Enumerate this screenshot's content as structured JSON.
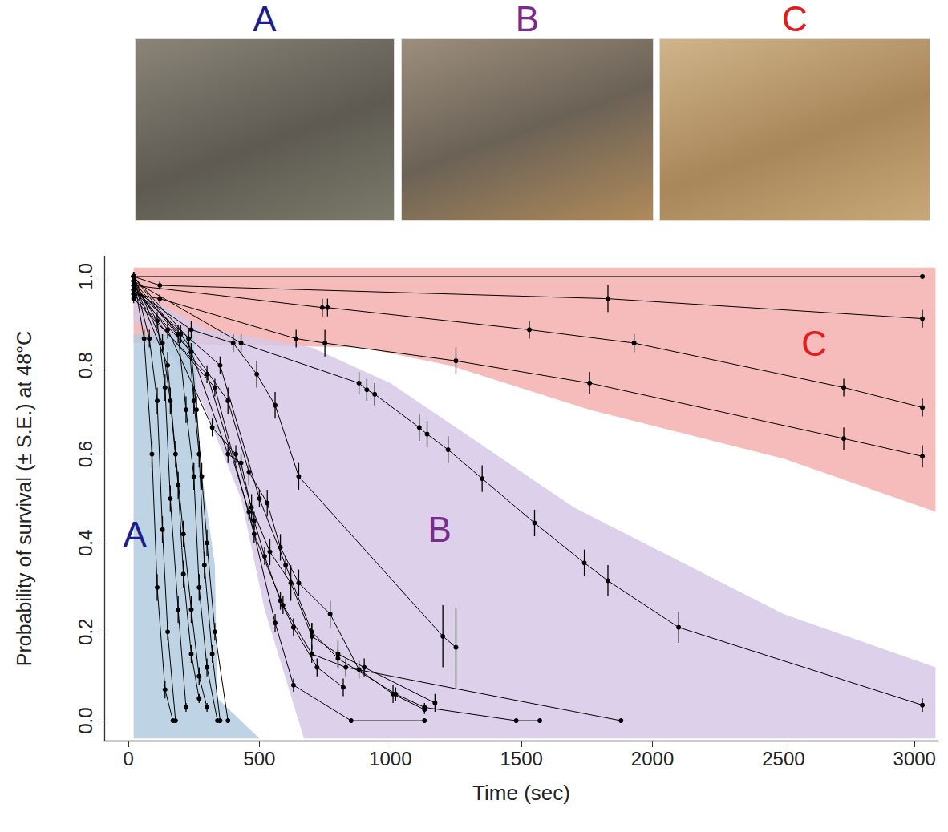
{
  "chart_data": {
    "type": "line",
    "xlabel": "Time (sec)",
    "ylabel": "Probability of survival (± S.E.) at 48°C",
    "xlim": [
      -92,
      3091
    ],
    "ylim": [
      -0.045,
      1.045
    ],
    "xticks": [
      0,
      500,
      1000,
      1500,
      2000,
      2500,
      3000
    ],
    "yticks": [
      {
        "value": 0,
        "label": "0.0"
      },
      0.2,
      0.4,
      0.6,
      0.8,
      {
        "value": 1,
        "label": "1.0"
      }
    ],
    "grid": false,
    "color": "#000000",
    "marker": "circle",
    "line_style": "solid",
    "photo_labels": [
      {
        "label": "A",
        "color": "#1c1c8a"
      },
      {
        "label": "B",
        "color": "#7a2b8c"
      },
      {
        "label": "C",
        "color": "#e31b1b"
      }
    ],
    "regions": [
      {
        "label": "C",
        "color": "#f5b0b0",
        "label_color": "#e31b1b",
        "label_x": 2617,
        "label_y": 0.85,
        "x": [
          20,
          3080,
          3080,
          2500,
          1760,
          1225,
          890,
          20
        ],
        "y": [
          1.02,
          1.02,
          0.47,
          0.59,
          0.7,
          0.8,
          0.84,
          0.85
        ]
      },
      {
        "label": "B",
        "color": "#d6c8e6",
        "label_color": "#7a2b8c",
        "label_x": 1188,
        "label_y": 0.43,
        "x": [
          20,
          300,
          700,
          1000,
          1400,
          1700,
          2100,
          2500,
          3080,
          3080,
          670,
          520,
          430,
          280,
          120,
          20
        ],
        "y": [
          0.97,
          0.88,
          0.84,
          0.76,
          0.6,
          0.48,
          0.36,
          0.24,
          0.12,
          -0.04,
          -0.04,
          0.25,
          0.5,
          0.72,
          0.86,
          0.9
        ]
      },
      {
        "label": "A",
        "color": "#b3cce0",
        "label_color": "#1c1c8a",
        "label_x": 25,
        "label_y": 0.42,
        "x": [
          20,
          250,
          270,
          330,
          340,
          500,
          20
        ],
        "y": [
          0.87,
          0.87,
          0.6,
          0.35,
          0.05,
          -0.04,
          -0.04
        ]
      }
    ],
    "series": [
      {
        "x": [
          20,
          3030
        ],
        "values": [
          1.0,
          1.0
        ],
        "errors": [
          0.01,
          0.005
        ]
      },
      {
        "x": [
          20,
          120,
          1830,
          3030
        ],
        "values": [
          1.0,
          0.98,
          0.95,
          0.905
        ],
        "errors": [
          0.01,
          0.01,
          0.03,
          0.02
        ]
      },
      {
        "x": [
          20,
          740,
          760,
          1530,
          1930,
          2730,
          3030
        ],
        "values": [
          0.98,
          0.93,
          0.93,
          0.88,
          0.85,
          0.75,
          0.705
        ],
        "errors": [
          0.01,
          0.02,
          0.02,
          0.02,
          0.02,
          0.02,
          0.02
        ]
      },
      {
        "x": [
          20,
          120,
          640,
          750,
          1250,
          1760,
          2730,
          3030
        ],
        "values": [
          0.96,
          0.95,
          0.86,
          0.85,
          0.81,
          0.76,
          0.635,
          0.595
        ],
        "errors": [
          0.01,
          0.01,
          0.02,
          0.03,
          0.03,
          0.025,
          0.025,
          0.025
        ]
      },
      {
        "x": [
          20,
          430,
          880,
          910,
          940,
          1110,
          1140,
          1220,
          1350,
          1550,
          1740,
          1830,
          2100,
          3030
        ],
        "values": [
          0.99,
          0.85,
          0.76,
          0.745,
          0.735,
          0.66,
          0.645,
          0.61,
          0.545,
          0.445,
          0.355,
          0.315,
          0.21,
          0.035
        ],
        "errors": [
          0.01,
          0.02,
          0.025,
          0.025,
          0.025,
          0.03,
          0.03,
          0.03,
          0.03,
          0.03,
          0.03,
          0.035,
          0.035,
          0.015
        ]
      },
      {
        "x": [
          20,
          240,
          400,
          490,
          560,
          650,
          1200,
          1250
        ],
        "values": [
          0.97,
          0.88,
          0.85,
          0.78,
          0.71,
          0.55,
          0.19,
          0.165
        ],
        "errors": [
          0.01,
          0.02,
          0.02,
          0.03,
          0.03,
          0.03,
          0.07,
          0.09
        ]
      },
      {
        "x": [
          20,
          200,
          380,
          460,
          530,
          580,
          650,
          770,
          880,
          1010,
          1130
        ],
        "values": [
          0.98,
          0.87,
          0.72,
          0.56,
          0.49,
          0.39,
          0.31,
          0.24,
          0.115,
          0.06,
          0.025
        ],
        "errors": [
          0.01,
          0.02,
          0.03,
          0.03,
          0.03,
          0.03,
          0.03,
          0.03,
          0.02,
          0.02,
          0.01
        ]
      },
      {
        "x": [
          20,
          150,
          320,
          410,
          470,
          540,
          620,
          700,
          800,
          900,
          1170
        ],
        "values": [
          0.98,
          0.88,
          0.66,
          0.6,
          0.48,
          0.38,
          0.31,
          0.19,
          0.15,
          0.12,
          0.04
        ],
        "errors": [
          0.01,
          0.02,
          0.02,
          0.02,
          0.03,
          0.03,
          0.04,
          0.03,
          0.03,
          0.02,
          0.02
        ]
      },
      {
        "x": [
          20,
          240,
          380,
          430,
          480,
          520,
          580,
          630,
          720,
          820
        ],
        "values": [
          0.97,
          0.83,
          0.6,
          0.58,
          0.45,
          0.37,
          0.27,
          0.21,
          0.12,
          0.075
        ],
        "errors": [
          0.01,
          0.02,
          0.02,
          0.02,
          0.02,
          0.02,
          0.02,
          0.02,
          0.02,
          0.02
        ]
      },
      {
        "x": [
          20,
          300,
          460,
          560,
          630,
          850,
          1130
        ],
        "values": [
          0.95,
          0.78,
          0.47,
          0.22,
          0.08,
          0,
          0
        ],
        "errors": [
          0.01,
          0.02,
          0.02,
          0.02,
          0.015,
          0.005,
          0.005
        ]
      },
      {
        "x": [
          20,
          330,
          480,
          590,
          700,
          830,
          1880
        ],
        "values": [
          0.96,
          0.75,
          0.42,
          0.26,
          0.15,
          0.12,
          0
        ],
        "errors": [
          0.01,
          0.02,
          0.02,
          0.02,
          0.02,
          0.02,
          0.005
        ]
      },
      {
        "x": [
          20,
          350,
          500,
          600,
          700,
          800,
          1020,
          1130,
          1480,
          1570
        ],
        "values": [
          0.97,
          0.8,
          0.5,
          0.35,
          0.2,
          0.14,
          0.06,
          0.03,
          0,
          0
        ],
        "errors": [
          0.01,
          0.02,
          0.02,
          0.02,
          0.02,
          0.02,
          0.015,
          0.01,
          0.005,
          0.005
        ]
      },
      {
        "x": [
          20,
          60,
          90,
          110,
          140,
          170
        ],
        "values": [
          1,
          0.86,
          0.6,
          0.3,
          0.07,
          0
        ],
        "errors": [
          0.01,
          0.02,
          0.03,
          0.03,
          0.02,
          0.005
        ]
      },
      {
        "x": [
          20,
          80,
          110,
          130,
          150,
          180
        ],
        "values": [
          1,
          0.86,
          0.72,
          0.43,
          0.2,
          0
        ],
        "errors": [
          0.01,
          0.02,
          0.03,
          0.03,
          0.02,
          0.005
        ]
      },
      {
        "x": [
          20,
          110,
          140,
          160,
          190,
          220
        ],
        "values": [
          0.99,
          0.9,
          0.75,
          0.5,
          0.25,
          0.03
        ],
        "errors": [
          0.01,
          0.02,
          0.03,
          0.03,
          0.03,
          0.01
        ]
      },
      {
        "x": [
          20,
          130,
          160,
          190,
          210,
          240,
          270
        ],
        "values": [
          1,
          0.85,
          0.72,
          0.53,
          0.33,
          0.15,
          0.05
        ],
        "errors": [
          0.01,
          0.02,
          0.03,
          0.03,
          0.03,
          0.02,
          0.01
        ]
      },
      {
        "x": [
          20,
          150,
          180,
          210,
          240,
          270,
          300
        ],
        "values": [
          0.99,
          0.8,
          0.6,
          0.42,
          0.25,
          0.1,
          0.03
        ],
        "errors": [
          0.01,
          0.03,
          0.03,
          0.03,
          0.03,
          0.02,
          0.01
        ]
      },
      {
        "x": [
          20,
          190,
          220,
          250,
          270,
          300,
          340
        ],
        "values": [
          1,
          0.87,
          0.7,
          0.55,
          0.3,
          0.12,
          0
        ],
        "errors": [
          0.01,
          0.02,
          0.03,
          0.03,
          0.03,
          0.02,
          0.005
        ]
      },
      {
        "x": [
          20,
          230,
          250,
          270,
          290,
          320,
          350
        ],
        "values": [
          1,
          0.86,
          0.72,
          0.6,
          0.35,
          0.15,
          0
        ],
        "errors": [
          0.01,
          0.02,
          0.03,
          0.03,
          0.03,
          0.02,
          0.005
        ]
      },
      {
        "x": [
          20,
          240,
          260,
          280,
          300,
          330,
          380
        ],
        "values": [
          0.99,
          0.83,
          0.7,
          0.55,
          0.4,
          0.2,
          0
        ],
        "errors": [
          0.01,
          0.02,
          0.03,
          0.03,
          0.03,
          0.02,
          0.005
        ]
      }
    ]
  }
}
